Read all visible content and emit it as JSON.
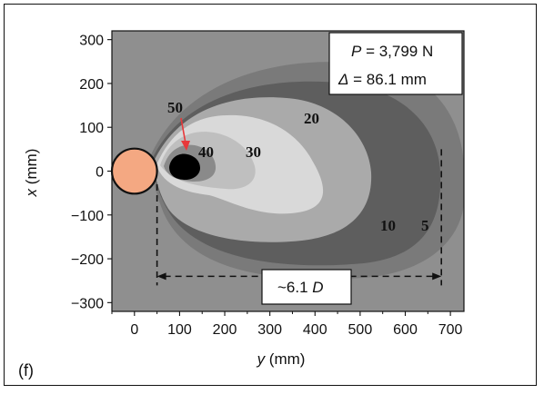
{
  "panel_label": "(f)",
  "chart_data": {
    "type": "contour",
    "xlabel_var": "y",
    "xlabel_unit": " (mm)",
    "ylabel_var": "x",
    "ylabel_unit": " (mm)",
    "xlim": [
      -50,
      730
    ],
    "ylim": [
      -320,
      320
    ],
    "x_ticks": [
      0,
      100,
      200,
      300,
      400,
      500,
      600,
      700
    ],
    "y_ticks": [
      300,
      200,
      100,
      0,
      -100,
      -200,
      -300
    ],
    "y_tick_labels": [
      "300",
      "200",
      "100",
      "0",
      "−100",
      "−200",
      "−300"
    ],
    "contour_levels": [
      "50",
      "40",
      "30",
      "20",
      "10",
      "5"
    ],
    "colors": {
      "background": "#8f8f8f",
      "level_5": "#7a7a7a",
      "level_10": "#5e5e5e",
      "level_20": "#aaaaaa",
      "level_30": "#d9d9d9",
      "level_30b": "#bfbfbf",
      "level_40": "#8a8a8a",
      "level_50": "#000000",
      "pile": "#f4a882",
      "arrow": "#e8383a"
    },
    "annotation": {
      "load_prefix": "P",
      "load_text": " = 3,799 N",
      "disp_prefix": "Δ",
      "disp_text": " = 86.1 mm",
      "extent_text": "~6.1 ",
      "extent_var": "D"
    },
    "pile": {
      "center_y": 0,
      "center_x": 0,
      "diameter": 100
    },
    "extent_marker": {
      "y_start": 50,
      "y_end": 680,
      "x": -240
    }
  }
}
